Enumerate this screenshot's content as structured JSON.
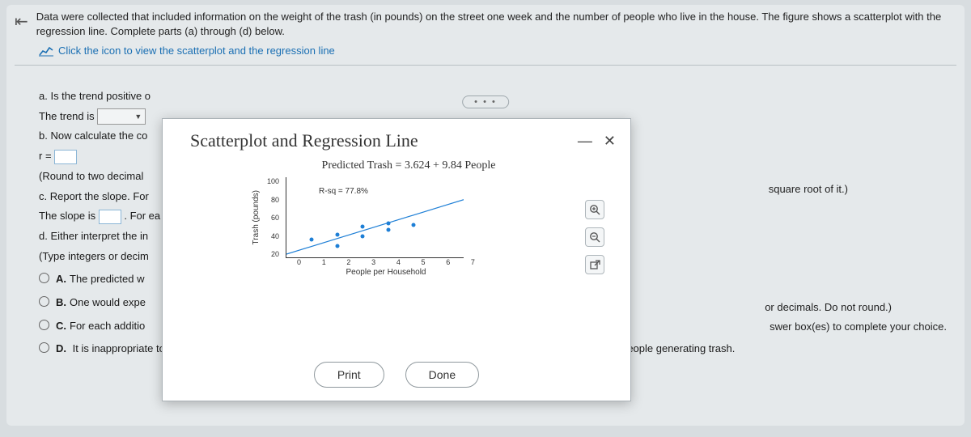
{
  "intro": "Data were collected that included information on the weight of the trash (in pounds) on the street one week and the number of people who live in the house. The figure shows a scatterplot with the regression line. Complete parts (a) through (d) below.",
  "chart_link": "Click the icon to view the scatterplot and the regression line",
  "dots": "• • •",
  "q": {
    "a_label": "a. Is the trend positive o",
    "trend_prefix": "The trend is",
    "b_label": "b. Now calculate the co",
    "r_prefix": "r =",
    "r_round": "(Round to two decimal ",
    "c_label": "c. Report the slope. For",
    "slope_prefix": "The slope is",
    "slope_suffix": ". For ea",
    "d_label1": "d. Either interpret the in",
    "d_label2": "(Type integers or decim",
    "optA": "The predicted w",
    "optB": "One would expe",
    "optC": "For each additio",
    "optD": "It is inappropriate to interpret the intercept because it does not make sense to think of a household with",
    "optD_tail": "person/people generating trash."
  },
  "hints": {
    "sqrt": "square root of it.)",
    "dec": "or decimals. Do not round.)",
    "swer": "swer box(es) to complete your choice."
  },
  "modal": {
    "title": "Scatterplot and Regression Line",
    "chart_title": "Predicted Trash = 3.624 + 9.84 People",
    "rsq": "R-sq = 77.8%",
    "y_label": "Trash (pounds)",
    "x_label": "People per Household",
    "y_ticks": [
      "100",
      "80",
      "60",
      "40",
      "20"
    ],
    "x_ticks": [
      "0",
      "1",
      "2",
      "3",
      "4",
      "5",
      "6",
      "7"
    ],
    "points": [
      {
        "x": 1,
        "y": 22
      },
      {
        "x": 2,
        "y": 14
      },
      {
        "x": 2,
        "y": 28
      },
      {
        "x": 3,
        "y": 26
      },
      {
        "x": 3,
        "y": 38
      },
      {
        "x": 4,
        "y": 34
      },
      {
        "x": 4,
        "y": 42
      },
      {
        "x": 5,
        "y": 40
      }
    ],
    "x_max": 7,
    "y_max": 100,
    "print": "Print",
    "done": "Done"
  },
  "colors": {
    "page_bg": "#d8dde0",
    "panel_bg": "#e5e9eb",
    "link": "#1a6fb3",
    "point": "#1e7fd6"
  }
}
